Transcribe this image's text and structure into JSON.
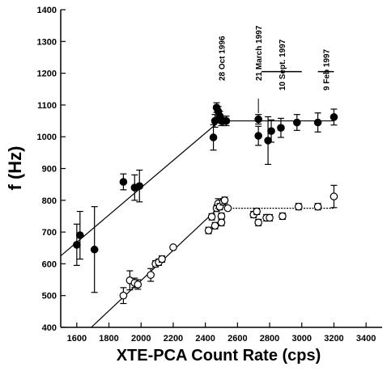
{
  "chart_data": {
    "type": "scatter",
    "x_label": "XTE-PCA Count Rate (cps)",
    "y_label": "f (Hz)",
    "xlim": [
      1500,
      3500
    ],
    "ylim": [
      400,
      1400
    ],
    "xticks": [
      1600,
      1800,
      2000,
      2200,
      2400,
      2600,
      2800,
      3000,
      3200,
      3400
    ],
    "yticks": [
      400,
      500,
      600,
      700,
      800,
      900,
      1000,
      1100,
      1200,
      1300,
      1400
    ],
    "series": [
      {
        "marker": "filled",
        "color": "#000000",
        "x": [
          1600,
          1620,
          1710,
          1890,
          1960,
          1990,
          2450,
          2460,
          2470,
          2480,
          2490,
          2500,
          2510,
          2530,
          2730,
          2730,
          2790,
          2810,
          2870,
          2970,
          3100,
          3200
        ],
        "values": [
          660,
          690,
          645,
          858,
          840,
          845,
          998,
          1050,
          1092,
          1080,
          1065,
          1050,
          1050,
          1050,
          1055,
          1003,
          988,
          1018,
          1028,
          1045,
          1045,
          1062
        ],
        "errors": [
          65,
          75,
          135,
          25,
          40,
          50,
          40,
          20,
          15,
          15,
          15,
          15,
          15,
          15,
          15,
          30,
          75,
          35,
          30,
          25,
          30,
          25
        ]
      },
      {
        "marker": "open",
        "color": "#000000",
        "x": [
          1890,
          1930,
          1960,
          1980,
          2060,
          2090,
          2110,
          2130,
          2200,
          2420,
          2440,
          2460,
          2470,
          2480,
          2490,
          2500,
          2500,
          2510,
          2520,
          2540,
          2700,
          2720,
          2730,
          2780,
          2800,
          2880,
          2980,
          3100,
          3200
        ],
        "values": [
          500,
          548,
          540,
          535,
          565,
          600,
          605,
          615,
          652,
          705,
          748,
          720,
          775,
          790,
          780,
          750,
          730,
          795,
          800,
          775,
          755,
          765,
          730,
          745,
          745,
          750,
          780,
          780,
          812
        ],
        "errors": [
          25,
          30,
          15,
          15,
          20,
          10,
          10,
          10,
          5,
          10,
          10,
          10,
          10,
          15,
          10,
          10,
          10,
          10,
          10,
          5,
          10,
          10,
          10,
          10,
          10,
          10,
          10,
          10,
          35
        ]
      }
    ],
    "fit_lines": [
      {
        "style": "solid",
        "x": [
          1500,
          2490,
          3200
        ],
        "y": [
          625,
          1050,
          1050
        ]
      },
      {
        "style": "solid",
        "x": [
          1690,
          2500
        ],
        "y": [
          400,
          785
        ]
      },
      {
        "style": "dotted",
        "x": [
          2500,
          3200
        ],
        "y": [
          775,
          775
        ]
      }
    ],
    "annotations": [
      {
        "text": "28 Oct 1996",
        "x": 2500
      },
      {
        "text": "21 March 1997",
        "x": 2730
      },
      {
        "text": "10 Sept. 1997",
        "span": [
          2750,
          3000
        ]
      },
      {
        "text": "9 Feb 1997",
        "span": [
          3100,
          3200
        ]
      }
    ]
  }
}
